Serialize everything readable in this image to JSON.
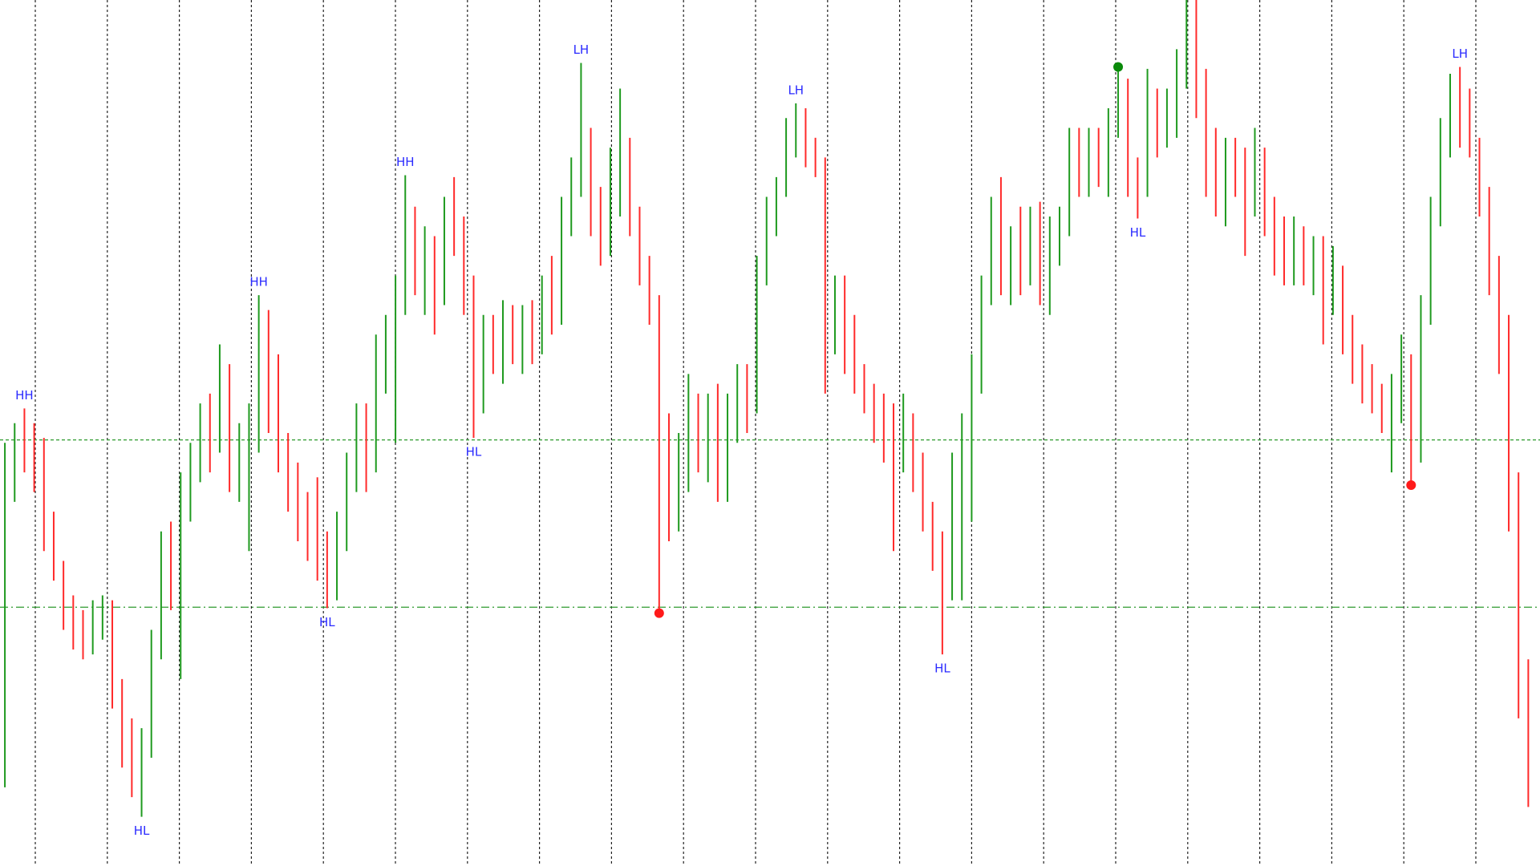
{
  "chart_data": {
    "type": "ohlc",
    "ylim": [
      0,
      880
    ],
    "up_color": "#1f9a1f",
    "down_color": "#ff2a2a",
    "label_color": "#2a2aff",
    "bars": [
      [
        120,
        430,
        80,
        400
      ],
      [
        400,
        450,
        370,
        430
      ],
      [
        440,
        465,
        400,
        420
      ],
      [
        430,
        450,
        380,
        400
      ],
      [
        410,
        435,
        320,
        340
      ],
      [
        340,
        360,
        290,
        300
      ],
      [
        300,
        310,
        240,
        260
      ],
      [
        260,
        275,
        220,
        240
      ],
      [
        250,
        260,
        210,
        230
      ],
      [
        230,
        270,
        215,
        250
      ],
      [
        250,
        275,
        230,
        265
      ],
      [
        260,
        270,
        160,
        180
      ],
      [
        180,
        190,
        100,
        120
      ],
      [
        120,
        150,
        70,
        90
      ],
      [
        90,
        140,
        50,
        120
      ],
      [
        120,
        240,
        110,
        220
      ],
      [
        220,
        340,
        210,
        320
      ],
      [
        320,
        350,
        260,
        300
      ],
      [
        300,
        400,
        190,
        380
      ],
      [
        380,
        430,
        350,
        410
      ],
      [
        410,
        470,
        390,
        450
      ],
      [
        450,
        480,
        400,
        430
      ],
      [
        430,
        530,
        420,
        500
      ],
      [
        500,
        510,
        380,
        400
      ],
      [
        400,
        450,
        370,
        430
      ],
      [
        430,
        470,
        320,
        450
      ],
      [
        450,
        580,
        420,
        540
      ],
      [
        540,
        565,
        440,
        470
      ],
      [
        470,
        520,
        400,
        430
      ],
      [
        430,
        440,
        360,
        380
      ],
      [
        380,
        410,
        330,
        350
      ],
      [
        350,
        380,
        310,
        340
      ],
      [
        340,
        395,
        290,
        320
      ],
      [
        320,
        340,
        262,
        290
      ],
      [
        290,
        360,
        270,
        340
      ],
      [
        340,
        420,
        320,
        400
      ],
      [
        400,
        470,
        380,
        450
      ],
      [
        450,
        470,
        380,
        410
      ],
      [
        410,
        540,
        400,
        520
      ],
      [
        520,
        560,
        480,
        540
      ],
      [
        540,
        600,
        430,
        580
      ],
      [
        580,
        702,
        560,
        660
      ],
      [
        660,
        670,
        580,
        600
      ],
      [
        600,
        650,
        560,
        620
      ],
      [
        620,
        640,
        540,
        580
      ],
      [
        580,
        680,
        570,
        660
      ],
      [
        660,
        700,
        620,
        640
      ],
      [
        640,
        660,
        560,
        580
      ],
      [
        580,
        600,
        435,
        470
      ],
      [
        470,
        560,
        460,
        540
      ],
      [
        540,
        560,
        500,
        520
      ],
      [
        520,
        575,
        490,
        560
      ],
      [
        560,
        570,
        510,
        530
      ],
      [
        530,
        570,
        500,
        550
      ],
      [
        550,
        575,
        510,
        530
      ],
      [
        530,
        600,
        520,
        580
      ],
      [
        580,
        620,
        540,
        560
      ],
      [
        560,
        680,
        550,
        660
      ],
      [
        660,
        720,
        640,
        700
      ],
      [
        700,
        816,
        680,
        740
      ],
      [
        740,
        750,
        640,
        660
      ],
      [
        660,
        690,
        610,
        640
      ],
      [
        640,
        730,
        620,
        700
      ],
      [
        700,
        790,
        660,
        720
      ],
      [
        720,
        740,
        640,
        660
      ],
      [
        660,
        670,
        590,
        610
      ],
      [
        610,
        620,
        550,
        570
      ],
      [
        560,
        580,
        260,
        420
      ],
      [
        420,
        460,
        330,
        380
      ],
      [
        380,
        440,
        340,
        420
      ],
      [
        420,
        500,
        380,
        470
      ],
      [
        470,
        480,
        400,
        430
      ],
      [
        430,
        480,
        390,
        460
      ],
      [
        460,
        490,
        370,
        400
      ],
      [
        400,
        480,
        370,
        460
      ],
      [
        460,
        510,
        430,
        490
      ],
      [
        490,
        510,
        440,
        470
      ],
      [
        470,
        620,
        460,
        600
      ],
      [
        600,
        680,
        590,
        660
      ],
      [
        660,
        700,
        640,
        690
      ],
      [
        690,
        760,
        680,
        740
      ],
      [
        740,
        775,
        720,
        760
      ],
      [
        760,
        770,
        710,
        730
      ],
      [
        730,
        740,
        700,
        710
      ],
      [
        710,
        720,
        480,
        560
      ],
      [
        560,
        600,
        520,
        580
      ],
      [
        580,
        600,
        500,
        540
      ],
      [
        540,
        560,
        480,
        500
      ],
      [
        500,
        510,
        460,
        480
      ],
      [
        480,
        490,
        430,
        450
      ],
      [
        450,
        480,
        410,
        440
      ],
      [
        440,
        470,
        320,
        420
      ],
      [
        420,
        480,
        400,
        450
      ],
      [
        450,
        460,
        380,
        400
      ],
      [
        400,
        420,
        340,
        360
      ],
      [
        360,
        370,
        300,
        330
      ],
      [
        330,
        340,
        215,
        280
      ],
      [
        280,
        420,
        270,
        400
      ],
      [
        400,
        460,
        270,
        440
      ],
      [
        440,
        520,
        350,
        500
      ],
      [
        500,
        600,
        480,
        580
      ],
      [
        580,
        680,
        570,
        640
      ],
      [
        640,
        700,
        580,
        600
      ],
      [
        600,
        650,
        570,
        630
      ],
      [
        630,
        670,
        580,
        610
      ],
      [
        610,
        670,
        590,
        650
      ],
      [
        650,
        675,
        570,
        600
      ],
      [
        600,
        660,
        560,
        640
      ],
      [
        640,
        670,
        610,
        650
      ],
      [
        650,
        750,
        640,
        720
      ],
      [
        720,
        750,
        680,
        700
      ],
      [
        700,
        750,
        680,
        730
      ],
      [
        730,
        750,
        690,
        720
      ],
      [
        720,
        770,
        680,
        760
      ],
      [
        760,
        812,
        740,
        790
      ],
      [
        790,
        800,
        680,
        700
      ],
      [
        700,
        720,
        658,
        690
      ],
      [
        690,
        810,
        680,
        780
      ],
      [
        780,
        790,
        720,
        750
      ],
      [
        750,
        790,
        730,
        770
      ],
      [
        770,
        830,
        740,
        800
      ],
      [
        800,
        880,
        790,
        850
      ],
      [
        850,
        880,
        760,
        790
      ],
      [
        790,
        810,
        680,
        720
      ],
      [
        720,
        750,
        660,
        700
      ],
      [
        700,
        740,
        650,
        720
      ],
      [
        720,
        740,
        680,
        700
      ],
      [
        700,
        730,
        620,
        680
      ],
      [
        680,
        750,
        660,
        720
      ],
      [
        720,
        730,
        640,
        660
      ],
      [
        660,
        680,
        600,
        630
      ],
      [
        630,
        660,
        590,
        610
      ],
      [
        610,
        660,
        590,
        640
      ],
      [
        640,
        650,
        590,
        610
      ],
      [
        610,
        640,
        580,
        630
      ],
      [
        630,
        640,
        530,
        580
      ],
      [
        580,
        630,
        560,
        600
      ],
      [
        600,
        610,
        520,
        540
      ],
      [
        540,
        560,
        490,
        510
      ],
      [
        510,
        530,
        470,
        490
      ],
      [
        490,
        510,
        460,
        470
      ],
      [
        470,
        490,
        440,
        460
      ],
      [
        460,
        500,
        400,
        480
      ],
      [
        480,
        540,
        450,
        500
      ],
      [
        500,
        520,
        387,
        420
      ],
      [
        420,
        580,
        410,
        560
      ],
      [
        560,
        680,
        550,
        660
      ],
      [
        660,
        760,
        650,
        740
      ],
      [
        740,
        805,
        720,
        780
      ],
      [
        780,
        812,
        730,
        760
      ],
      [
        760,
        790,
        720,
        740
      ],
      [
        740,
        740,
        660,
        680
      ],
      [
        680,
        690,
        580,
        610
      ],
      [
        610,
        620,
        500,
        530
      ],
      [
        530,
        560,
        340,
        380
      ],
      [
        380,
        400,
        150,
        200
      ],
      [
        200,
        210,
        60,
        100
      ]
    ],
    "levels": [
      {
        "value": 433,
        "style": "dashed",
        "color": "#2e9a2e"
      },
      {
        "value": 263,
        "style": "dashdot",
        "color": "#2e9a2e"
      }
    ],
    "markers": [
      {
        "bar": 67,
        "value": 257,
        "color": "#ff1a1a"
      },
      {
        "bar": 114,
        "value": 812,
        "color": "#0a8a0a"
      },
      {
        "bar": 144,
        "value": 387,
        "color": "#ff1a1a"
      }
    ],
    "annotations": [
      {
        "text": "HH",
        "bar": 2
      },
      {
        "text": "HL",
        "bar": 14
      },
      {
        "text": "HH",
        "bar": 26
      },
      {
        "text": "HL",
        "bar": 33
      },
      {
        "text": "HH",
        "bar": 41
      },
      {
        "text": "HL",
        "bar": 48
      },
      {
        "text": "LH",
        "bar": 59
      },
      {
        "text": "LH",
        "bar": 81
      },
      {
        "text": "HL",
        "bar": 96
      },
      {
        "text": "HL",
        "bar": 116
      },
      {
        "text": "LH",
        "bar": 149
      }
    ]
  }
}
